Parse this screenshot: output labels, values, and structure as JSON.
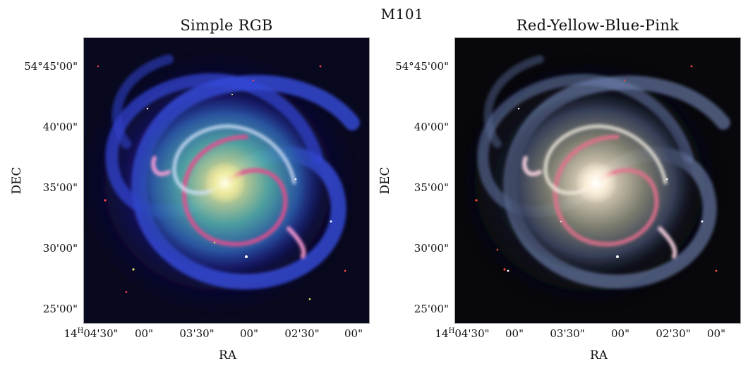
{
  "figure": {
    "title": "M101",
    "panels": [
      {
        "title": "Simple RGB",
        "ylabel": "DEC",
        "xlabel": "RA",
        "yticks": [
          "54°45'00\"",
          "40'00\"",
          "35'00\"",
          "30'00\"",
          "25'00\""
        ],
        "xtick_hours": "14",
        "xtick_hours_unit": "H",
        "xticks": [
          "04'30\"",
          "00\"",
          "03'30\"",
          "00\"",
          "02'30\"",
          "00\""
        ]
      },
      {
        "title": "Red-Yellow-Blue-Pink",
        "ylabel": "DEC",
        "xlabel": "RA",
        "yticks": [
          "54°45'00\"",
          "40'00\"",
          "35'00\"",
          "30'00\"",
          "25'00\""
        ],
        "xtick_hours": "14",
        "xtick_hours_unit": "H",
        "xticks": [
          "04'30\"",
          "00\"",
          "03'30\"",
          "00\"",
          "02'30\"",
          "00\""
        ]
      }
    ]
  }
}
